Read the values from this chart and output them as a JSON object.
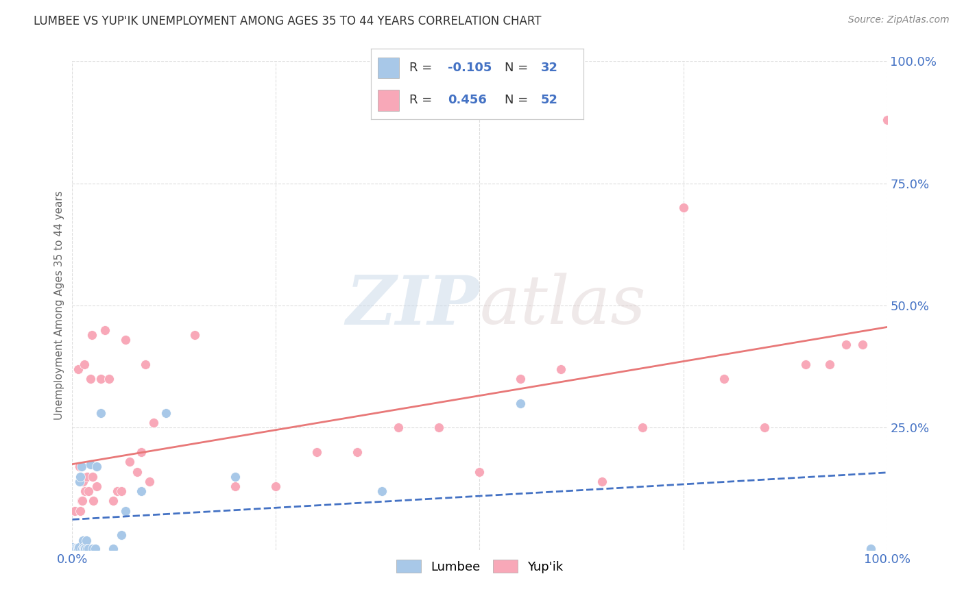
{
  "title": "LUMBEE VS YUP'IK UNEMPLOYMENT AMONG AGES 35 TO 44 YEARS CORRELATION CHART",
  "source": "Source: ZipAtlas.com",
  "ylabel": "Unemployment Among Ages 35 to 44 years",
  "lumbee_R": -0.105,
  "lumbee_N": 32,
  "yupik_R": 0.456,
  "yupik_N": 52,
  "lumbee_color": "#a8c8e8",
  "yupik_color": "#f8a8b8",
  "lumbee_line_color": "#4472C4",
  "yupik_line_color": "#e87878",
  "lumbee_x": [
    0.0,
    0.003,
    0.004,
    0.005,
    0.006,
    0.007,
    0.008,
    0.009,
    0.01,
    0.011,
    0.012,
    0.013,
    0.014,
    0.015,
    0.016,
    0.017,
    0.018,
    0.02,
    0.022,
    0.025,
    0.028,
    0.03,
    0.035,
    0.05,
    0.06,
    0.065,
    0.085,
    0.115,
    0.2,
    0.38,
    0.55,
    0.98
  ],
  "lumbee_y": [
    0.005,
    0.003,
    0.004,
    0.002,
    0.003,
    0.003,
    0.005,
    0.14,
    0.15,
    0.17,
    0.003,
    0.02,
    0.005,
    0.002,
    0.003,
    0.02,
    0.003,
    0.003,
    0.175,
    0.003,
    0.003,
    0.17,
    0.28,
    0.003,
    0.03,
    0.08,
    0.12,
    0.28,
    0.15,
    0.12,
    0.3,
    0.003
  ],
  "yupik_x": [
    0.003,
    0.005,
    0.007,
    0.008,
    0.009,
    0.01,
    0.011,
    0.012,
    0.013,
    0.014,
    0.015,
    0.016,
    0.018,
    0.02,
    0.022,
    0.024,
    0.026,
    0.03,
    0.035,
    0.04,
    0.05,
    0.055,
    0.06,
    0.07,
    0.08,
    0.09,
    0.1,
    0.15,
    0.2,
    0.25,
    0.3,
    0.35,
    0.4,
    0.45,
    0.5,
    0.55,
    0.6,
    0.65,
    0.7,
    0.75,
    0.8,
    0.85,
    0.9,
    0.93,
    0.95,
    0.97,
    1.0,
    0.025,
    0.045,
    0.065,
    0.085,
    0.095
  ],
  "yupik_y": [
    0.08,
    0.003,
    0.37,
    0.003,
    0.17,
    0.08,
    0.1,
    0.1,
    0.14,
    0.003,
    0.38,
    0.12,
    0.15,
    0.12,
    0.35,
    0.44,
    0.1,
    0.13,
    0.35,
    0.45,
    0.1,
    0.12,
    0.12,
    0.18,
    0.16,
    0.38,
    0.26,
    0.44,
    0.13,
    0.13,
    0.2,
    0.2,
    0.25,
    0.25,
    0.16,
    0.35,
    0.37,
    0.14,
    0.25,
    0.7,
    0.35,
    0.25,
    0.38,
    0.38,
    0.42,
    0.42,
    0.88,
    0.15,
    0.35,
    0.43,
    0.2,
    0.14
  ],
  "xlim": [
    0.0,
    1.0
  ],
  "ylim": [
    0.0,
    1.0
  ],
  "xticks": [
    0.0,
    0.25,
    0.5,
    0.75,
    1.0
  ],
  "xticklabels": [
    "0.0%",
    "",
    "",
    "",
    "100.0%"
  ],
  "yticks": [
    0.25,
    0.5,
    0.75,
    1.0
  ],
  "yticklabels": [
    "25.0%",
    "50.0%",
    "75.0%",
    "100.0%"
  ],
  "watermark_zip": "ZIP",
  "watermark_atlas": "atlas",
  "legend_labels": [
    "Lumbee",
    "Yup'ik"
  ],
  "background_color": "#ffffff",
  "grid_color": "#dddddd"
}
